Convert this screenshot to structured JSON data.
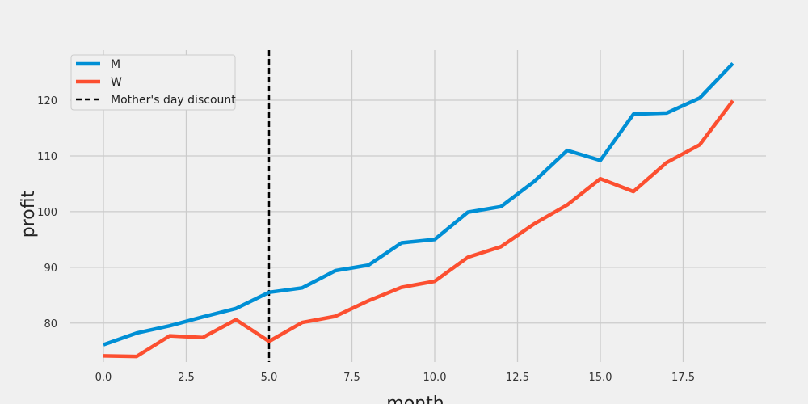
{
  "chart_data": {
    "type": "line",
    "title": "",
    "xlabel": "month",
    "ylabel": "profit",
    "xlim": [
      -1.0,
      20.0
    ],
    "ylim": [
      73.0,
      129.0
    ],
    "grid": true,
    "legend_placement": "top-left",
    "x_ticks": [
      0.0,
      2.5,
      5.0,
      7.5,
      10.0,
      12.5,
      15.0,
      17.5
    ],
    "x_tick_labels": [
      "0.0",
      "2.5",
      "5.0",
      "7.5",
      "10.0",
      "12.5",
      "15.0",
      "17.5"
    ],
    "y_ticks": [
      80,
      90,
      100,
      110,
      120
    ],
    "y_tick_labels": [
      "80",
      "90",
      "100",
      "110",
      "120"
    ],
    "x": [
      0,
      1,
      2,
      3,
      4,
      5,
      6,
      7,
      8,
      9,
      10,
      11,
      12,
      13,
      14,
      15,
      16,
      17,
      18,
      19
    ],
    "series": [
      {
        "name": "M",
        "color": "#008fd5",
        "values": [
          76.1,
          78.2,
          79.5,
          81.1,
          82.6,
          85.5,
          86.3,
          89.4,
          90.4,
          94.4,
          95.0,
          99.9,
          100.9,
          105.4,
          111.0,
          109.2,
          117.5,
          117.7,
          120.4,
          126.6
        ]
      },
      {
        "name": "W",
        "color": "#fc4f30",
        "values": [
          74.1,
          74.0,
          77.7,
          77.4,
          80.6,
          76.7,
          80.1,
          81.2,
          84.0,
          86.4,
          87.5,
          91.8,
          93.7,
          97.8,
          101.2,
          105.9,
          103.6,
          108.8,
          112.0,
          119.9
        ]
      }
    ],
    "vlines": [
      {
        "name": "Mother's day discount",
        "x": 5.0,
        "color": "#000000",
        "style": "dashed"
      }
    ]
  }
}
